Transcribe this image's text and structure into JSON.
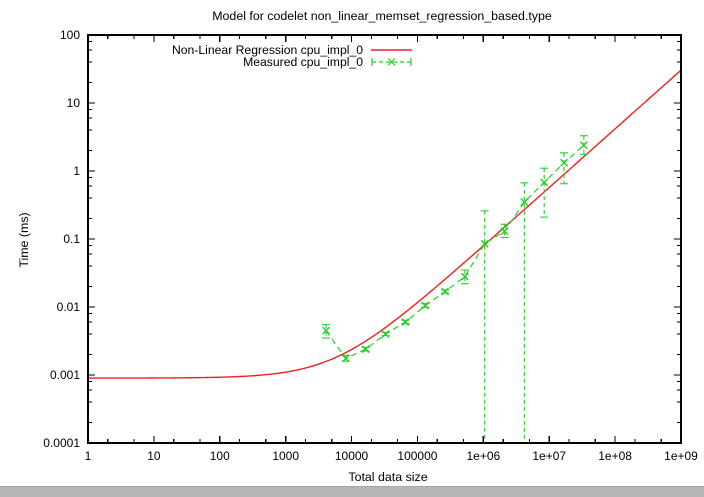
{
  "page": {
    "background": "#ffffff"
  },
  "scrollbar": {
    "color": "#b7b7b7"
  },
  "chart_data": {
    "type": "line",
    "title": "Model for codelet non_linear_memset_regression_based.type",
    "xlabel": "Total data size",
    "ylabel": "Time (ms)",
    "x_scale": "log",
    "y_scale": "log",
    "xlim": [
      1,
      1000000000
    ],
    "ylim": [
      0.0001,
      100
    ],
    "grid": false,
    "legend_position": "top-center-inside",
    "axis_color": "#000000",
    "x_ticks": [
      {
        "label": "1",
        "value": 1
      },
      {
        "label": "10",
        "value": 10
      },
      {
        "label": "100",
        "value": 100
      },
      {
        "label": "1000",
        "value": 1000
      },
      {
        "label": "10000",
        "value": 10000
      },
      {
        "label": "100000",
        "value": 100000
      },
      {
        "label": "1e+06",
        "value": 1000000
      },
      {
        "label": "1e+07",
        "value": 10000000
      },
      {
        "label": "1e+08",
        "value": 100000000
      },
      {
        "label": "1e+09",
        "value": 1000000000
      }
    ],
    "x_minor_mults": [
      2,
      5
    ],
    "y_ticks": [
      {
        "label": "100",
        "value": 100
      },
      {
        "label": "10",
        "value": 10
      },
      {
        "label": "1",
        "value": 1
      },
      {
        "label": "0.1",
        "value": 0.1
      },
      {
        "label": "0.01",
        "value": 0.01
      },
      {
        "label": "0.001",
        "value": 0.001
      },
      {
        "label": "0.0001",
        "value": 0.0001
      }
    ],
    "y_minor_mults": [
      2,
      4,
      6,
      8
    ],
    "series": [
      {
        "name": "Non-Linear Regression cpu_impl_0",
        "type": "line",
        "color": "#f02020",
        "model": {
          "form": "a + b*x^c",
          "a": 0.0009,
          "b": 5.2e-07,
          "c": 0.863
        }
      },
      {
        "name": "Measured cpu_impl_0",
        "type": "scatter-errorbars",
        "color": "#28cd28",
        "points": [
          {
            "x": 4096,
            "y": 0.0045,
            "lo": 0.0035,
            "hi": 0.0055
          },
          {
            "x": 8192,
            "y": 0.00175,
            "lo": 0.0016,
            "hi": 0.00195
          },
          {
            "x": 16384,
            "y": 0.0024,
            "lo": 0.00225,
            "hi": 0.00255
          },
          {
            "x": 32768,
            "y": 0.004,
            "lo": 0.0038,
            "hi": 0.0042
          },
          {
            "x": 65536,
            "y": 0.006,
            "lo": 0.0057,
            "hi": 0.0064
          },
          {
            "x": 131072,
            "y": 0.0105,
            "lo": 0.0099,
            "hi": 0.0112
          },
          {
            "x": 262144,
            "y": 0.0168,
            "lo": 0.016,
            "hi": 0.0178
          },
          {
            "x": 524288,
            "y": 0.028,
            "lo": 0.022,
            "hi": 0.035
          },
          {
            "x": 1048576,
            "y": 0.085,
            "lo": 0.0001,
            "hi": 0.26
          },
          {
            "x": 2097152,
            "y": 0.13,
            "lo": 0.105,
            "hi": 0.165
          },
          {
            "x": 4194304,
            "y": 0.35,
            "lo": 0.0001,
            "hi": 0.67
          },
          {
            "x": 8388608,
            "y": 0.68,
            "lo": 0.21,
            "hi": 1.1
          },
          {
            "x": 16777216,
            "y": 1.32,
            "lo": 0.65,
            "hi": 1.85
          },
          {
            "x": 33554432,
            "y": 2.4,
            "lo": 1.76,
            "hi": 3.3
          }
        ]
      }
    ]
  }
}
